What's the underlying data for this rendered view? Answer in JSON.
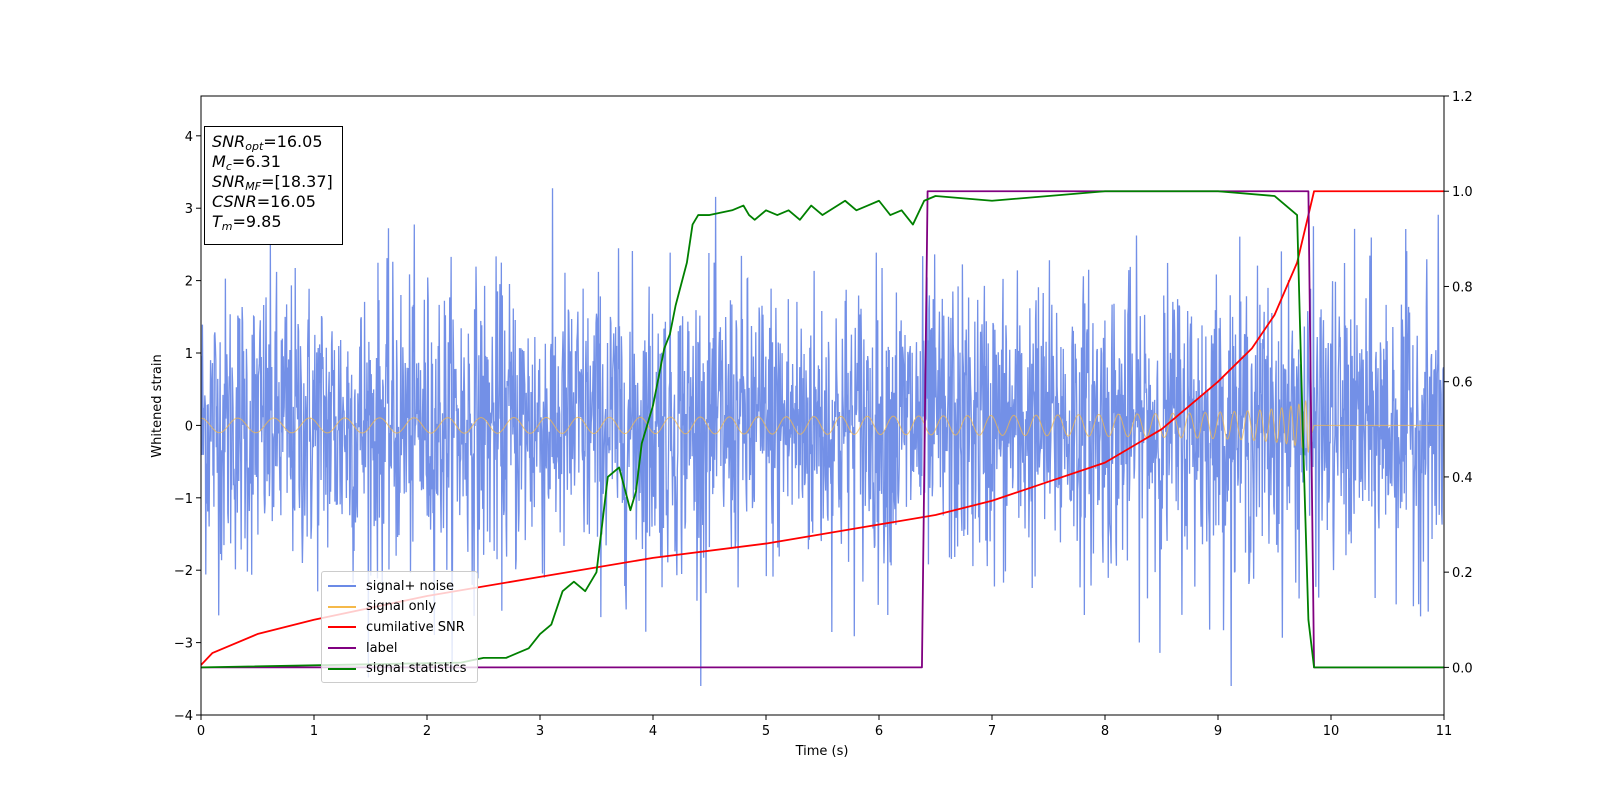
{
  "chart_data": {
    "type": "line",
    "xlabel": "Time (s)",
    "ylabel": "Whitened strain",
    "xlim": [
      0,
      11
    ],
    "ylim": [
      -4,
      4.55
    ],
    "y2lim": [
      -0.1,
      1.2
    ],
    "xticks": [
      "0",
      "1",
      "2",
      "3",
      "4",
      "5",
      "6",
      "7",
      "8",
      "9",
      "10",
      "11"
    ],
    "yticks": [
      "−4",
      "−3",
      "−2",
      "−1",
      "0",
      "1",
      "2",
      "3",
      "4"
    ],
    "y2ticks": [
      "0.0",
      "0.2",
      "0.4",
      "0.6",
      "0.8",
      "1.0",
      "1.2"
    ],
    "grid": false,
    "legend_position": "lower-left",
    "legend": [
      {
        "label": "signal+ noise",
        "color": "#6b8ae6"
      },
      {
        "label": "signal only",
        "color": "#f5b94a"
      },
      {
        "label": "cumilative SNR",
        "color": "#ff0000"
      },
      {
        "label": "label",
        "color": "#800080"
      },
      {
        "label": "signal statistics",
        "color": "#008000"
      }
    ],
    "info_box": {
      "snr_opt": "=16.05",
      "mc": "=6.31",
      "snr_mf": "=[18.37]",
      "csnr": "=16.05",
      "tm": "=9.85"
    },
    "series": [
      {
        "name": "signal+ noise",
        "axis": "left",
        "color": "#6b8ae6",
        "description": "noise trace, approx. std 1.0, peaks near ±3.5",
        "x_range": [
          0,
          11
        ],
        "noise_std": 1.0
      },
      {
        "name": "signal only",
        "axis": "left",
        "color": "#f5b94a",
        "description": "chirp, amplitude growing from ~0.1 to ~0.85 at 9.8 s, zero after",
        "x_range": [
          0,
          9.85
        ]
      },
      {
        "name": "cumilative SNR",
        "axis": "right",
        "color": "#ff0000",
        "x": [
          0,
          0.1,
          0.5,
          1,
          2,
          3,
          4,
          5,
          6,
          6.5,
          7,
          7.5,
          8,
          8.5,
          9,
          9.3,
          9.5,
          9.7,
          9.8,
          9.85,
          11
        ],
        "values": [
          0.005,
          0.03,
          0.07,
          0.1,
          0.15,
          0.19,
          0.23,
          0.26,
          0.3,
          0.32,
          0.35,
          0.39,
          0.43,
          0.5,
          0.6,
          0.67,
          0.74,
          0.85,
          0.95,
          1.0,
          1.0
        ]
      },
      {
        "name": "label",
        "axis": "right",
        "color": "#800080",
        "x": [
          0,
          6.38,
          6.43,
          9.8,
          9.85,
          11
        ],
        "values": [
          0.0,
          0.0,
          1.0,
          1.0,
          0.0,
          0.0
        ]
      },
      {
        "name": "signal statistics",
        "axis": "right",
        "color": "#008000",
        "x": [
          0,
          2.3,
          2.5,
          2.7,
          2.8,
          2.9,
          3.0,
          3.1,
          3.2,
          3.3,
          3.4,
          3.5,
          3.6,
          3.7,
          3.8,
          3.85,
          3.9,
          4.0,
          4.1,
          4.15,
          4.2,
          4.3,
          4.35,
          4.4,
          4.5,
          4.7,
          4.8,
          4.85,
          4.9,
          5.0,
          5.1,
          5.2,
          5.3,
          5.4,
          5.5,
          5.7,
          5.8,
          5.9,
          6.0,
          6.1,
          6.2,
          6.3,
          6.4,
          6.5,
          7.0,
          8.0,
          9.0,
          9.5,
          9.7,
          9.75,
          9.8,
          9.85,
          9.9,
          11
        ],
        "values": [
          0.0,
          0.01,
          0.02,
          0.02,
          0.03,
          0.04,
          0.07,
          0.09,
          0.16,
          0.18,
          0.16,
          0.2,
          0.4,
          0.42,
          0.33,
          0.37,
          0.47,
          0.55,
          0.67,
          0.7,
          0.76,
          0.85,
          0.93,
          0.95,
          0.95,
          0.96,
          0.97,
          0.95,
          0.94,
          0.96,
          0.95,
          0.96,
          0.94,
          0.97,
          0.95,
          0.98,
          0.96,
          0.97,
          0.98,
          0.95,
          0.96,
          0.93,
          0.98,
          0.99,
          0.98,
          1.0,
          1.0,
          0.99,
          0.95,
          0.5,
          0.1,
          0.0,
          0.0,
          0.0
        ]
      }
    ]
  }
}
